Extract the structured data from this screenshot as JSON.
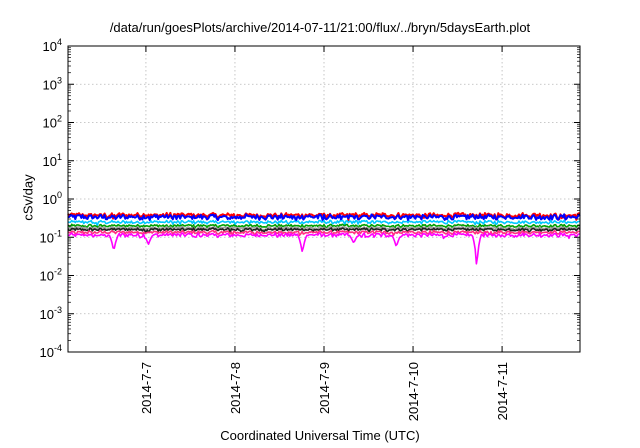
{
  "title": "/data/run/goesPlots/archive/2014-07-11/21:00/flux/../bryn/5daysEarth.plot",
  "chart_data": {
    "type": "line",
    "title": "/data/run/goesPlots/archive/2014-07-11/21:00/flux/../bryn/5daysEarth.plot",
    "xlabel": "Coordinated Universal Time (UTC)",
    "ylabel": "cSv/day",
    "yscale": "log",
    "ylim": [
      0.0001,
      10000
    ],
    "yticks": [
      {
        "base": "10",
        "exp": "-4",
        "value": 0.0001
      },
      {
        "base": "10",
        "exp": "-3",
        "value": 0.001
      },
      {
        "base": "10",
        "exp": "-2",
        "value": 0.01
      },
      {
        "base": "10",
        "exp": "-1",
        "value": 0.1
      },
      {
        "base": "10",
        "exp": "0",
        "value": 1
      },
      {
        "base": "10",
        "exp": "1",
        "value": 10
      },
      {
        "base": "10",
        "exp": "2",
        "value": 100
      },
      {
        "base": "10",
        "exp": "3",
        "value": 1000
      },
      {
        "base": "10",
        "exp": "4",
        "value": 10000
      }
    ],
    "xlim": [
      "2014-07-06T03:00",
      "2014-07-11T21:00"
    ],
    "xticks": [
      {
        "label": "2014-7-7",
        "value": "2014-07-07T00:00"
      },
      {
        "label": "2014-7-8",
        "value": "2014-07-08T00:00"
      },
      {
        "label": "2014-7-9",
        "value": "2014-07-09T00:00"
      },
      {
        "label": "2014-7-10",
        "value": "2014-07-10T00:00"
      },
      {
        "label": "2014-7-11",
        "value": "2014-07-11T00:00"
      }
    ],
    "grid": true,
    "series": [
      {
        "color": "#ff0000",
        "baseline": 0.38,
        "noise": 0.16,
        "dips": []
      },
      {
        "color": "#0000ff",
        "baseline": 0.34,
        "noise": 0.18,
        "dips": []
      },
      {
        "color": "#00c8ff",
        "baseline": 0.25,
        "noise": 0.12,
        "dips": []
      },
      {
        "color": "#00a000",
        "baseline": 0.2,
        "noise": 0.1,
        "dips": []
      },
      {
        "color": "#a0a0a0",
        "baseline": 0.175,
        "noise": 0.1,
        "dips": []
      },
      {
        "color": "#202020",
        "baseline": 0.16,
        "noise": 0.1,
        "dips": []
      },
      {
        "color": "#ff3080",
        "baseline": 0.135,
        "noise": 0.12,
        "dips": []
      },
      {
        "color": "#ff00ff",
        "baseline": 0.115,
        "noise": 0.14,
        "dips": [
          {
            "t": "2014-07-06T15:20",
            "value": 0.042
          },
          {
            "t": "2014-07-07T00:40",
            "value": 0.065
          },
          {
            "t": "2014-07-08T18:10",
            "value": 0.038
          },
          {
            "t": "2014-07-09T08:00",
            "value": 0.07
          },
          {
            "t": "2014-07-09T19:30",
            "value": 0.055
          },
          {
            "t": "2014-07-10T17:10",
            "value": 0.012
          }
        ]
      }
    ]
  }
}
